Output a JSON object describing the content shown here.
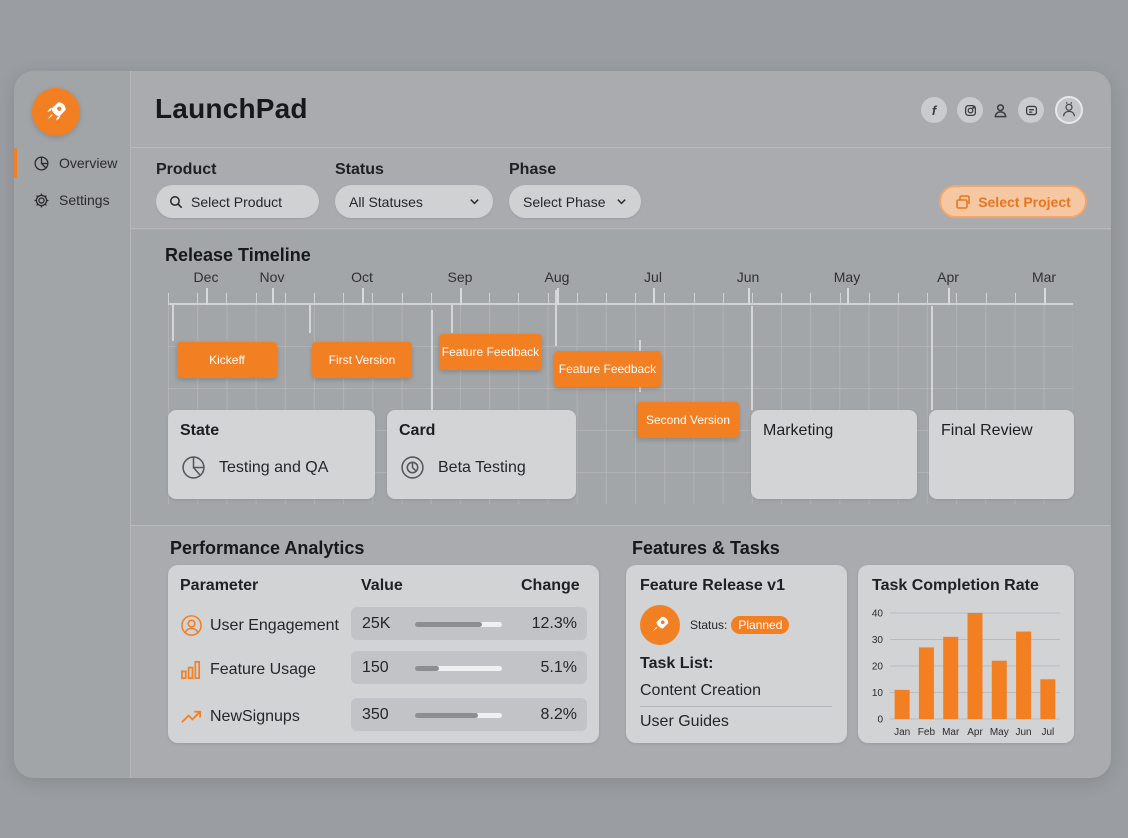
{
  "app": {
    "title": "LaunchPad"
  },
  "sidebar": {
    "items": [
      {
        "label": "Overview",
        "icon": "pie-chart-icon",
        "active": true
      },
      {
        "label": "Settings",
        "icon": "gear-icon",
        "active": false
      }
    ]
  },
  "header": {
    "icons": [
      "facebook-icon",
      "instagram-icon",
      "user-icon",
      "message-icon",
      "profile-avatar"
    ],
    "facebook_glyph": "f"
  },
  "filters": {
    "product": {
      "label": "Product",
      "placeholder": "Select Product"
    },
    "status": {
      "label": "Status",
      "value": "All Statuses"
    },
    "phase": {
      "label": "Phase",
      "value": "Select Phase"
    },
    "project_button": "Select Project"
  },
  "timeline": {
    "title": "Release Timeline",
    "months": [
      "Dec",
      "Nov",
      "Oct",
      "Sep",
      "Aug",
      "Jul",
      "Jun",
      "May",
      "Apr",
      "Mar"
    ],
    "milestones": [
      "Kickeff",
      "First Version",
      "Feature Feedback",
      "Feature Feedback",
      "Second Version"
    ],
    "cards": [
      {
        "title": "State",
        "value": "Testing and QA",
        "icon": "pie-chart-icon"
      },
      {
        "title": "Card",
        "value": "Beta Testing",
        "icon": "gauge-icon"
      },
      {
        "title": "Marketing",
        "value": ""
      },
      {
        "title": "Final Review",
        "value": ""
      }
    ]
  },
  "analytics": {
    "title": "Performance Analytics",
    "columns": [
      "Parameter",
      "Value",
      "Change"
    ],
    "rows": [
      {
        "name": "User Engagement",
        "icon": "user-circle-icon",
        "value": "25K",
        "progress": 0.77,
        "change": "12.3%"
      },
      {
        "name": "Feature Usage",
        "icon": "bar-chart-icon",
        "value": "150",
        "progress": 0.28,
        "change": "5.1%"
      },
      {
        "name": "NewSignups",
        "icon": "trend-up-icon",
        "value": "350",
        "progress": 0.72,
        "change": "8.2%"
      }
    ]
  },
  "features": {
    "title": "Features & Tasks",
    "release": {
      "title": "Feature Release v1",
      "status_label": "Status:",
      "status": "Planned",
      "task_list_label": "Task List:",
      "tasks": [
        "Content Creation",
        "User Guides"
      ]
    }
  },
  "chart_data": {
    "type": "bar",
    "title": "Task Completion Rate",
    "categories": [
      "Jan",
      "Feb",
      "Mar",
      "Apr",
      "May",
      "Jun",
      "Jul"
    ],
    "values": [
      11,
      27,
      31,
      40,
      22,
      33,
      15
    ],
    "ylim": [
      0,
      40
    ],
    "yticks": [
      0,
      10,
      20,
      30,
      40
    ],
    "grid": true,
    "color": "#f27f22"
  },
  "colors": {
    "accent": "#f27f22",
    "background": "#9a9da1",
    "card": "#d1d3d5"
  }
}
